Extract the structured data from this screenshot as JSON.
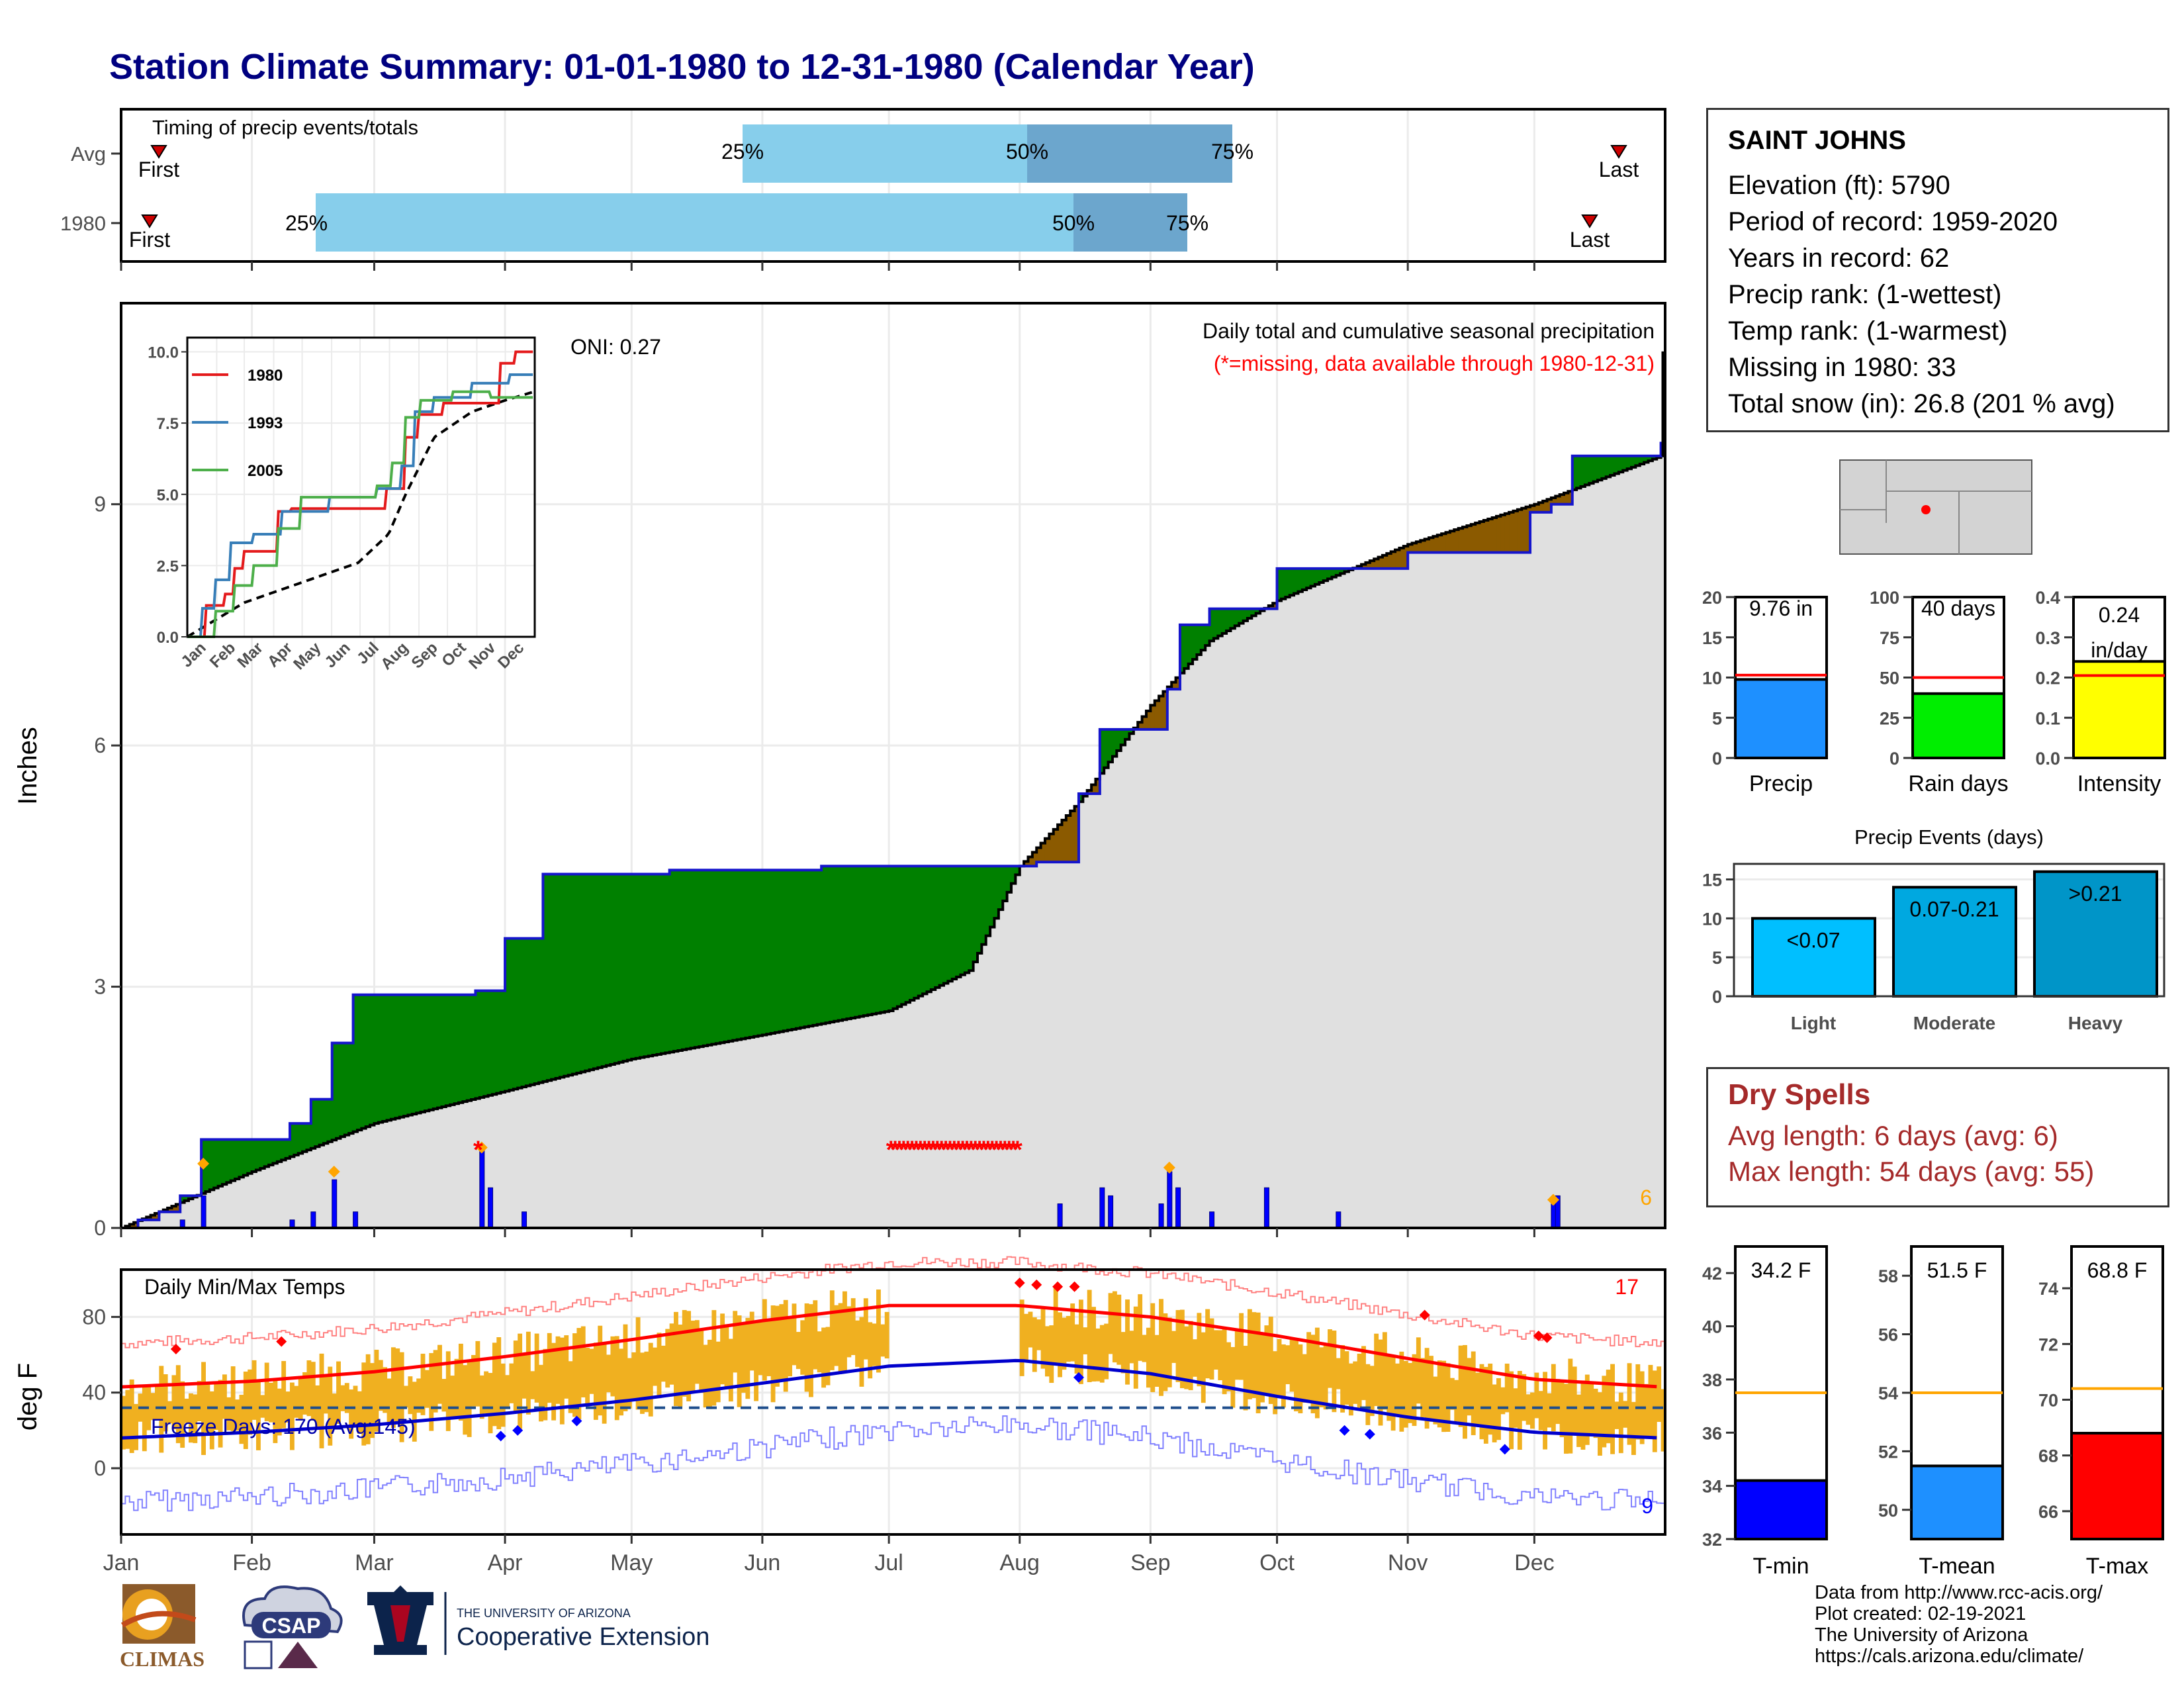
{
  "title": "Station Climate Summary: 01-01-1980 to 12-31-1980 (Calendar Year)",
  "timing_panel": {
    "label": "Timing of precip events/totals",
    "rows": [
      "Avg",
      "1980"
    ],
    "first_label": "First",
    "last_label": "Last",
    "p25": "25%",
    "p50": "50%",
    "p75": "75%"
  },
  "main_panel": {
    "ylabel": "Inches",
    "yticks": [
      "0",
      "3",
      "6",
      "9"
    ],
    "oni": "ONI: 0.27",
    "subtitle": "Daily total and cumulative seasonal precipitation",
    "note": "(*=missing, data available through 1980-12-31)",
    "corner_count": "6"
  },
  "inset": {
    "yticks": [
      "0.0",
      "2.5",
      "5.0",
      "7.5",
      "10.0"
    ],
    "months": [
      "Jan",
      "Feb",
      "Mar",
      "Apr",
      "May",
      "Jun",
      "Jul",
      "Aug",
      "Sep",
      "Oct",
      "Nov",
      "Dec"
    ],
    "legend": [
      "1980",
      "1993",
      "2005"
    ]
  },
  "temp_panel": {
    "ylabel": "deg F",
    "label": "Daily Min/Max Temps",
    "yticks": [
      "0",
      "40",
      "80"
    ],
    "freeze": "Freeze Days: 170 (Avg:145)",
    "max_count": "17",
    "min_count": "9"
  },
  "months": [
    "Jan",
    "Feb",
    "Mar",
    "Apr",
    "May",
    "Jun",
    "Jul",
    "Aug",
    "Sep",
    "Oct",
    "Nov",
    "Dec"
  ],
  "station": {
    "name": "SAINT JOHNS",
    "lines": [
      "Elevation (ft): 5790",
      "Period of record: 1959-2020",
      "Years in record: 62",
      "Precip rank:  (1-wettest)",
      "Temp rank:  (1-warmest)",
      "Missing in 1980: 33",
      "Total snow (in): 26.8 (201 % avg)"
    ]
  },
  "precip_gauges": [
    {
      "label": "Precip",
      "value_text": "9.76 in",
      "value": 9.76,
      "avg": 10.3,
      "ymax": 20,
      "ticks": [
        "0",
        "5",
        "10",
        "15",
        "20"
      ],
      "color": "#1e90ff"
    },
    {
      "label": "Rain days",
      "value_text": "40 days",
      "value": 40,
      "avg": 50,
      "ymax": 100,
      "ticks": [
        "0",
        "25",
        "50",
        "75",
        "100"
      ],
      "color": "#00ee00"
    },
    {
      "label": "Intensity",
      "value_text": "0.24 in/day",
      "value": 0.24,
      "avg": 0.205,
      "ymax": 0.4,
      "ticks": [
        "0.0",
        "0.1",
        "0.2",
        "0.3",
        "0.4"
      ],
      "color": "#ffff00"
    }
  ],
  "events": {
    "title": "Precip Events (days)",
    "yticks": [
      "0",
      "5",
      "10",
      "15"
    ],
    "bars": [
      {
        "category": "Light",
        "label": "<0.07",
        "value": 10,
        "color": "#00bfff"
      },
      {
        "category": "Moderate",
        "label": "0.07-0.21",
        "value": 14,
        "color": "#00a8e0"
      },
      {
        "category": "Heavy",
        "label": ">0.21",
        "value": 16,
        "color": "#0095c8"
      }
    ]
  },
  "dry_spells": {
    "title": "Dry Spells",
    "avg": "Avg length: 6 days (avg: 6)",
    "max": "Max length: 54 days (avg: 55)"
  },
  "temp_gauges": [
    {
      "label": "T-min",
      "value_text": "34.2 F",
      "value": 34.2,
      "avg": 37.5,
      "ymin": 32,
      "ymax": 43,
      "ticks": [
        "32",
        "34",
        "36",
        "38",
        "40",
        "42"
      ],
      "color": "#0000ff"
    },
    {
      "label": "T-mean",
      "value_text": "51.5 F",
      "value": 51.5,
      "avg": 54.0,
      "ymin": 49,
      "ymax": 59,
      "ticks": [
        "50",
        "52",
        "54",
        "56",
        "58"
      ],
      "color": "#1e90ff"
    },
    {
      "label": "T-max",
      "value_text": "68.8 F",
      "value": 68.8,
      "avg": 70.4,
      "ymin": 65,
      "ymax": 75.5,
      "ticks": [
        "66",
        "68",
        "70",
        "72",
        "74"
      ],
      "color": "#ff0000"
    }
  ],
  "credits": [
    "Data from http://www.rcc-acis.org/",
    "Plot created: 02-19-2021",
    "The University of Arizona",
    "https://cals.arizona.edu/climate/"
  ],
  "logos": {
    "climas": "CLIMAS",
    "csap": "CSAP",
    "ua_small": "THE UNIVERSITY OF ARIZONA",
    "ua_big": "Cooperative Extension"
  },
  "colors": {
    "title": "#000080",
    "above": "#008000",
    "below": "#8b5a00",
    "normal": "#e0e0e0",
    "daily": "#0000ff",
    "temp_bar": "#f0b020",
    "dry": "#a52a2a"
  },
  "chart_data": {
    "type": "area",
    "title": "Daily total and cumulative seasonal precipitation",
    "ylabel": "Inches",
    "ylim": [
      0,
      11.5
    ],
    "cumulative_1980": {
      "x": [
        "01-01",
        "01-05",
        "01-10",
        "01-15",
        "01-20",
        "02-10",
        "02-15",
        "02-20",
        "02-25",
        "03-05",
        "03-25",
        "04-01",
        "04-10",
        "05-10",
        "06-15",
        "06-30",
        "07-31",
        "08-05",
        "08-15",
        "08-20",
        "08-25",
        "09-05",
        "09-08",
        "09-15",
        "10-01",
        "10-20",
        "11-01",
        "11-15",
        "11-30",
        "12-05",
        "12-10",
        "12-31"
      ],
      "y": [
        0,
        0.1,
        0.2,
        0.4,
        1.1,
        1.3,
        1.6,
        2.3,
        2.9,
        2.9,
        2.95,
        3.6,
        4.4,
        4.45,
        4.5,
        4.5,
        4.5,
        4.55,
        5.4,
        6.2,
        6.2,
        6.7,
        7.5,
        7.7,
        8.2,
        8.2,
        8.4,
        8.4,
        8.9,
        9.0,
        9.6,
        9.76
      ]
    },
    "normal_cumulative": {
      "x": [
        "01-01",
        "02-01",
        "03-01",
        "04-01",
        "05-01",
        "06-01",
        "07-01",
        "07-20",
        "08-01",
        "08-15",
        "09-01",
        "09-15",
        "10-01",
        "11-01",
        "12-01",
        "12-31"
      ],
      "y": [
        0,
        0.7,
        1.3,
        1.7,
        2.1,
        2.4,
        2.7,
        3.2,
        4.5,
        5.3,
        6.5,
        7.3,
        7.8,
        8.5,
        9.0,
        9.6
      ]
    },
    "daily_precip": {
      "x": [
        "01-15",
        "01-20",
        "02-10",
        "02-15",
        "02-20",
        "02-25",
        "03-26",
        "03-28",
        "04-05",
        "08-10",
        "08-20",
        "08-22",
        "09-03",
        "09-05",
        "09-07",
        "09-15",
        "09-28",
        "10-15",
        "12-05",
        "12-06"
      ],
      "y": [
        0.1,
        0.4,
        0.1,
        0.2,
        0.6,
        0.2,
        1.0,
        0.5,
        0.2,
        0.3,
        0.5,
        0.4,
        0.3,
        0.7,
        0.5,
        0.2,
        0.5,
        0.2,
        0.3,
        0.4
      ]
    },
    "missing_days": [
      "03-25",
      "07-01 to 07-31"
    ],
    "temperature": {
      "ylabel": "deg F",
      "ylim": [
        -35,
        105
      ],
      "freeze_line": 32,
      "normal_max": {
        "x": [
          "01-01",
          "02-01",
          "03-01",
          "04-01",
          "05-01",
          "06-01",
          "07-01",
          "08-01",
          "09-01",
          "10-01",
          "11-01",
          "12-01",
          "12-31"
        ],
        "y": [
          43,
          46,
          51,
          59,
          68,
          78,
          86,
          86,
          80,
          70,
          58,
          47,
          43
        ]
      },
      "normal_min": {
        "x": [
          "01-01",
          "02-01",
          "03-01",
          "04-01",
          "05-01",
          "06-01",
          "07-01",
          "08-01",
          "09-01",
          "10-01",
          "11-01",
          "12-01",
          "12-31"
        ],
        "y": [
          16,
          19,
          23,
          29,
          36,
          45,
          54,
          57,
          50,
          38,
          27,
          19,
          16
        ]
      }
    }
  }
}
